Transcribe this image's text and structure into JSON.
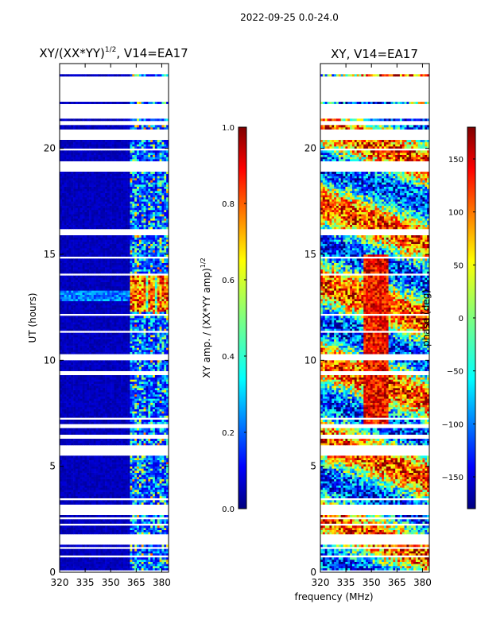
{
  "figure_title": "2022-09-25 0.0-24.0",
  "shared_xlabel": "frequency (MHz)",
  "chart_data": [
    {
      "type": "heatmap",
      "title_main": "XY/(XX*YY)",
      "title_sup": "1/2",
      "title_rest": ", V14=EA17",
      "xlabel": "",
      "ylabel": "UT (hours)",
      "xlim": [
        320,
        384
      ],
      "ylim": [
        0,
        24
      ],
      "xticks": [
        320,
        335,
        350,
        365,
        380
      ],
      "yticks": [
        0,
        5,
        10,
        15,
        20
      ],
      "colorbar": {
        "label_main": "XY amp. / (XX*YY amp)",
        "label_sup": "1/2",
        "range": [
          0.0,
          1.0
        ],
        "ticks": [
          "0.0",
          "0.2",
          "0.4",
          "0.6",
          "0.8",
          "1.0"
        ],
        "tick_values": [
          0,
          0.2,
          0.4,
          0.6,
          0.8,
          1.0
        ],
        "colormap": "jet"
      },
      "data_description": "Normalized cross-correlation amplitude; mostly near 0 (blue) below 361 MHz, elevated 0.3-0.9 in 361-380 MHz band, strongest around 12-14 UT"
    },
    {
      "type": "heatmap",
      "title_main": "XY, V14=EA17",
      "xlabel": "",
      "ylabel": "",
      "xlim": [
        320,
        384
      ],
      "ylim": [
        0,
        24
      ],
      "xticks": [
        320,
        335,
        350,
        365,
        380
      ],
      "yticks": [
        0,
        5,
        10,
        15,
        20
      ],
      "colorbar": {
        "label_main": "phase (deg)",
        "range": [
          -180,
          180
        ],
        "ticks": [
          "−150",
          "−100",
          "−50",
          "0",
          "50",
          "100",
          "150"
        ],
        "tick_values": [
          -150,
          -100,
          -50,
          0,
          50,
          100,
          150
        ],
        "colormap": "jet"
      },
      "data_description": "Cross-correlation phase in degrees, spanning -180 to 180 across the band"
    }
  ],
  "colors": {
    "jet_stops": [
      "#00007f",
      "#0000ff",
      "#007fff",
      "#00ffff",
      "#7fff7f",
      "#ffff00",
      "#ff7f00",
      "#ff0000",
      "#7f0000"
    ]
  }
}
